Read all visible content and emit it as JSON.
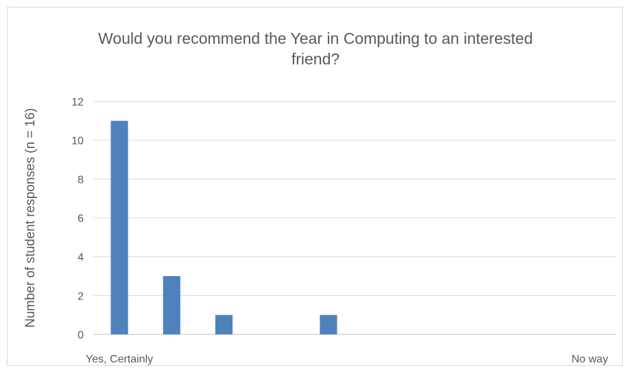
{
  "chart_data": {
    "type": "bar",
    "title": "Would you recommend the Year in Computing to an interested friend?",
    "xlabel": "",
    "ylabel": "Number of student responses (n = 16)",
    "categories": [
      "Yes, Certainly",
      "",
      "",
      "",
      "",
      "",
      "",
      "",
      "",
      "No way"
    ],
    "values": [
      11,
      3,
      1,
      0,
      1,
      0,
      0,
      0,
      0,
      0
    ],
    "ylim": [
      0,
      12
    ],
    "yticks": [
      0,
      2,
      4,
      6,
      8,
      10,
      12
    ],
    "grid": true,
    "legend": "none",
    "bar_color": "#4f81bd"
  }
}
